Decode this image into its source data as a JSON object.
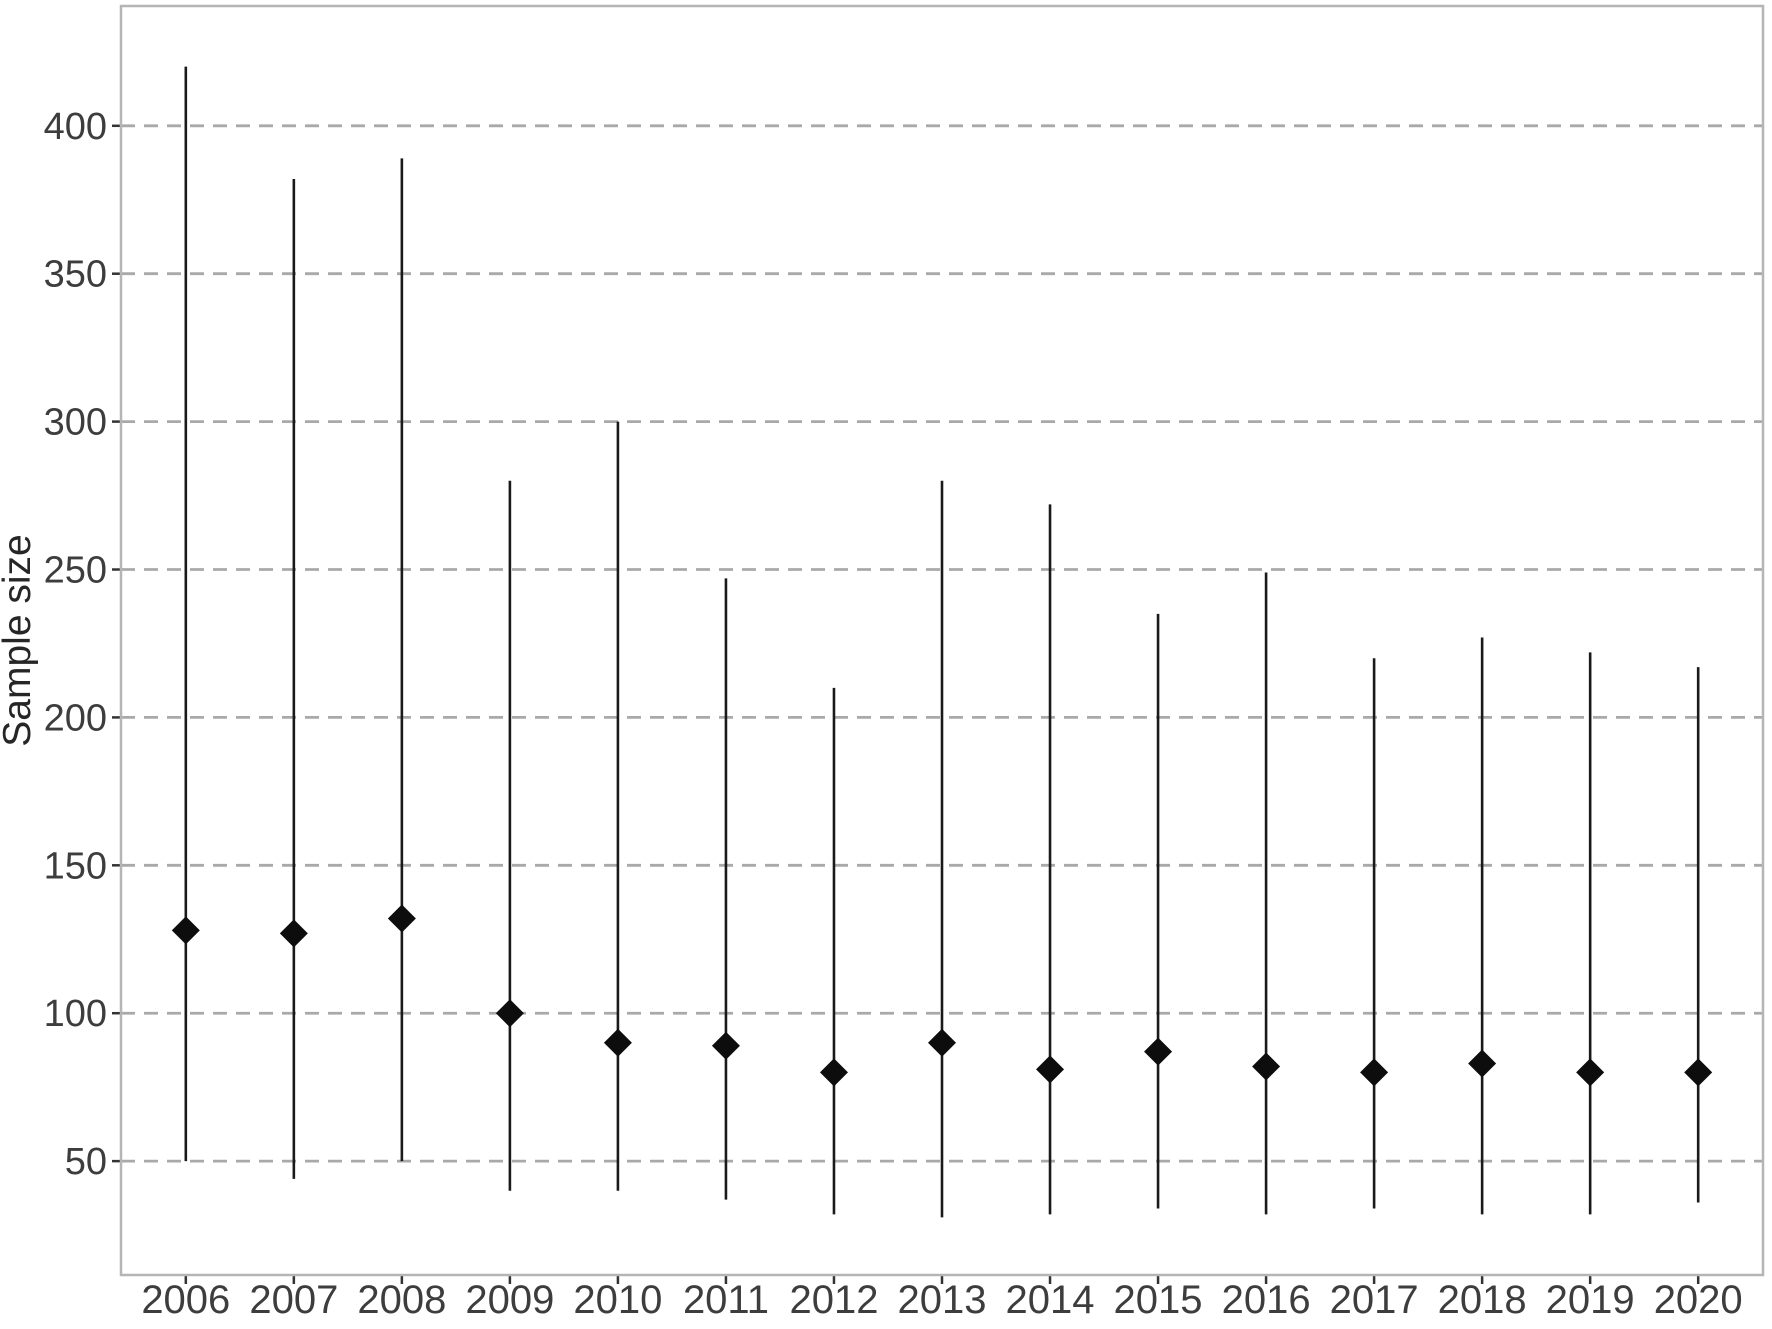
{
  "chart_data": {
    "type": "scatter",
    "title": "",
    "xlabel": "",
    "ylabel": "Sample size",
    "categories": [
      "2006",
      "2007",
      "2008",
      "2009",
      "2010",
      "2011",
      "2012",
      "2013",
      "2014",
      "2015",
      "2016",
      "2017",
      "2018",
      "2019",
      "2020"
    ],
    "series": [
      {
        "name": "point",
        "marker": "diamond",
        "values": [
          128,
          127,
          132,
          100,
          90,
          89,
          80,
          90,
          81,
          87,
          82,
          80,
          83,
          80,
          80
        ]
      },
      {
        "name": "range_min",
        "values": [
          50,
          44,
          50,
          40,
          40,
          37,
          32,
          31,
          32,
          34,
          32,
          34,
          32,
          32,
          36
        ]
      },
      {
        "name": "range_max",
        "values": [
          420,
          382,
          389,
          280,
          300,
          247,
          210,
          280,
          272,
          235,
          249,
          220,
          227,
          222,
          217
        ]
      }
    ],
    "ylim": [
      11.5,
      440.5
    ],
    "yticks": [
      50,
      100,
      150,
      200,
      250,
      300,
      350,
      400
    ],
    "grid": "horizontal-dashed",
    "legend": "none"
  },
  "colors": {
    "background": "#ffffff",
    "panel_border": "#b5b5b5",
    "gridline": "#a9a9a9",
    "tick_mark": "#333333",
    "axis_text": "#3d3d3d",
    "axis_title": "#262626",
    "range_line": "#1a1a1a",
    "point": "#0d0d0d"
  }
}
